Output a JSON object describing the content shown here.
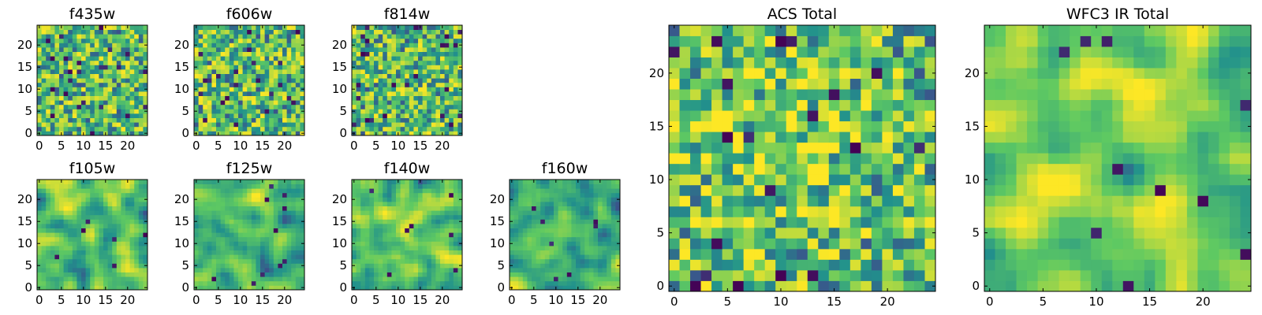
{
  "figure": {
    "background": "#ffffff",
    "colormap": "viridis",
    "colormap_stops": [
      "#440154",
      "#3b528b",
      "#21918c",
      "#5ec962",
      "#fde725"
    ]
  },
  "chart_data": [
    {
      "type": "heatmap",
      "title": "f435w",
      "grid_size": 25,
      "xticks": [
        0,
        5,
        10,
        15,
        20
      ],
      "yticks": [
        0,
        5,
        10,
        15,
        20
      ],
      "xlim": [
        -0.5,
        24.5
      ],
      "ylim": [
        -0.5,
        24.5
      ],
      "texture": "pixel-scale noise",
      "seed": 11
    },
    {
      "type": "heatmap",
      "title": "f606w",
      "grid_size": 25,
      "xticks": [
        0,
        5,
        10,
        15,
        20
      ],
      "yticks": [
        0,
        5,
        10,
        15,
        20
      ],
      "xlim": [
        -0.5,
        24.5
      ],
      "ylim": [
        -0.5,
        24.5
      ],
      "texture": "pixel-scale noise",
      "seed": 23
    },
    {
      "type": "heatmap",
      "title": "f814w",
      "grid_size": 25,
      "xticks": [
        0,
        5,
        10,
        15,
        20
      ],
      "yticks": [
        0,
        5,
        10,
        15,
        20
      ],
      "xlim": [
        -0.5,
        24.5
      ],
      "ylim": [
        -0.5,
        24.5
      ],
      "texture": "pixel-scale noise",
      "seed": 37
    },
    {
      "type": "heatmap",
      "title": "f105w",
      "grid_size": 25,
      "xticks": [
        0,
        5,
        10,
        15,
        20
      ],
      "yticks": [
        0,
        5,
        10,
        15,
        20
      ],
      "xlim": [
        -0.5,
        24.5
      ],
      "ylim": [
        -0.5,
        24.5
      ],
      "texture": "smooth blobs",
      "seed": 41
    },
    {
      "type": "heatmap",
      "title": "f125w",
      "grid_size": 25,
      "xticks": [
        0,
        5,
        10,
        15,
        20
      ],
      "yticks": [
        0,
        5,
        10,
        15,
        20
      ],
      "xlim": [
        -0.5,
        24.5
      ],
      "ylim": [
        -0.5,
        24.5
      ],
      "texture": "smooth blobs",
      "seed": 53
    },
    {
      "type": "heatmap",
      "title": "f140w",
      "grid_size": 25,
      "xticks": [
        0,
        5,
        10,
        15,
        20
      ],
      "yticks": [
        0,
        5,
        10,
        15,
        20
      ],
      "xlim": [
        -0.5,
        24.5
      ],
      "ylim": [
        -0.5,
        24.5
      ],
      "texture": "smooth blobs",
      "seed": 67
    },
    {
      "type": "heatmap",
      "title": "f160w",
      "grid_size": 25,
      "xticks": [
        0,
        5,
        10,
        15,
        20
      ],
      "yticks": [
        0,
        5,
        10,
        15,
        20
      ],
      "xlim": [
        -0.5,
        24.5
      ],
      "ylim": [
        -0.5,
        24.5
      ],
      "texture": "smooth blobs",
      "seed": 79
    },
    {
      "type": "heatmap",
      "title": "ACS Total",
      "grid_size": 25,
      "xticks": [
        0,
        5,
        10,
        15,
        20
      ],
      "yticks": [
        0,
        5,
        10,
        15,
        20
      ],
      "xlim": [
        -0.5,
        24.5
      ],
      "ylim": [
        -0.5,
        24.5
      ],
      "texture": "pixel-scale noise, bright centre",
      "seed": 83
    },
    {
      "type": "heatmap",
      "title": "WFC3 IR Total",
      "grid_size": 25,
      "xticks": [
        0,
        5,
        10,
        15,
        20
      ],
      "yticks": [
        0,
        5,
        10,
        15,
        20
      ],
      "xlim": [
        -0.5,
        24.5
      ],
      "ylim": [
        -0.5,
        24.5
      ],
      "texture": "smooth blobs, bright centre",
      "seed": 97
    }
  ]
}
